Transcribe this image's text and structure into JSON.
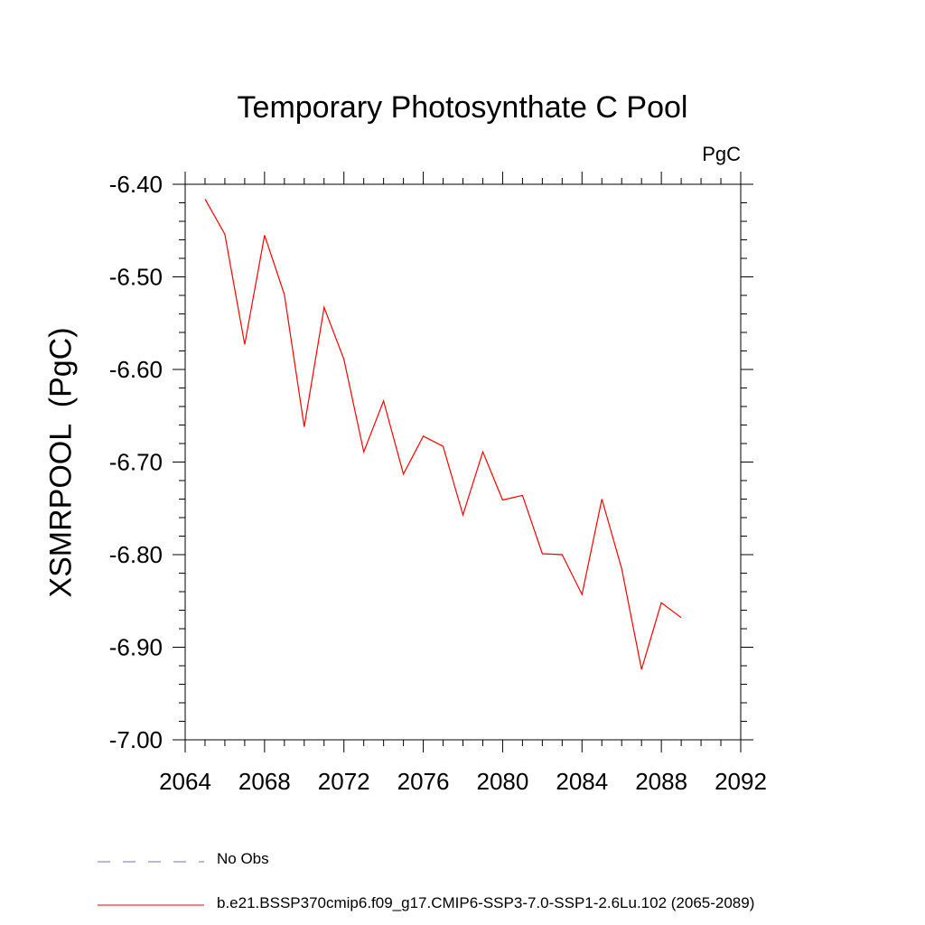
{
  "chart_data": {
    "type": "line",
    "title": "Temporary Photosynthate C Pool",
    "units_label": "PgC",
    "ylabel": "XSMRPOOL  (PgC)",
    "xlabel": "",
    "xlim": [
      2064,
      2092
    ],
    "ylim": [
      -7.0,
      -6.4
    ],
    "x_ticks": [
      "2064",
      "2068",
      "2072",
      "2076",
      "2080",
      "2084",
      "2088",
      "2092"
    ],
    "y_ticks": [
      "-7.00",
      "-6.90",
      "-6.80",
      "-6.70",
      "-6.60",
      "-6.50",
      "-6.40"
    ],
    "grid": false,
    "legend_placement": "bottom-left",
    "series": [
      {
        "name": "b.e21.BSSP370cmip6.f09_g17.CMIP6-SSP3-7.0-SSP1-2.6Lu.102 (2065-2089)",
        "color": "#ff0000",
        "style": "solid",
        "x": [
          2065,
          2066,
          2067,
          2068,
          2069,
          2070,
          2071,
          2072,
          2073,
          2074,
          2075,
          2076,
          2077,
          2078,
          2079,
          2080,
          2081,
          2082,
          2083,
          2084,
          2085,
          2086,
          2087,
          2088,
          2089
        ],
        "values": [
          -6.416,
          -6.454,
          -6.573,
          -6.455,
          -6.519,
          -6.662,
          -6.533,
          -6.589,
          -6.689,
          -6.634,
          -6.713,
          -6.672,
          -6.683,
          -6.757,
          -6.689,
          -6.741,
          -6.736,
          -6.799,
          -6.8,
          -6.843,
          -6.74,
          -6.815,
          -6.924,
          -6.852,
          -6.868
        ]
      },
      {
        "name": "No Obs",
        "color": "#7a6fb0",
        "style": "dashed",
        "x": [],
        "values": []
      }
    ]
  }
}
